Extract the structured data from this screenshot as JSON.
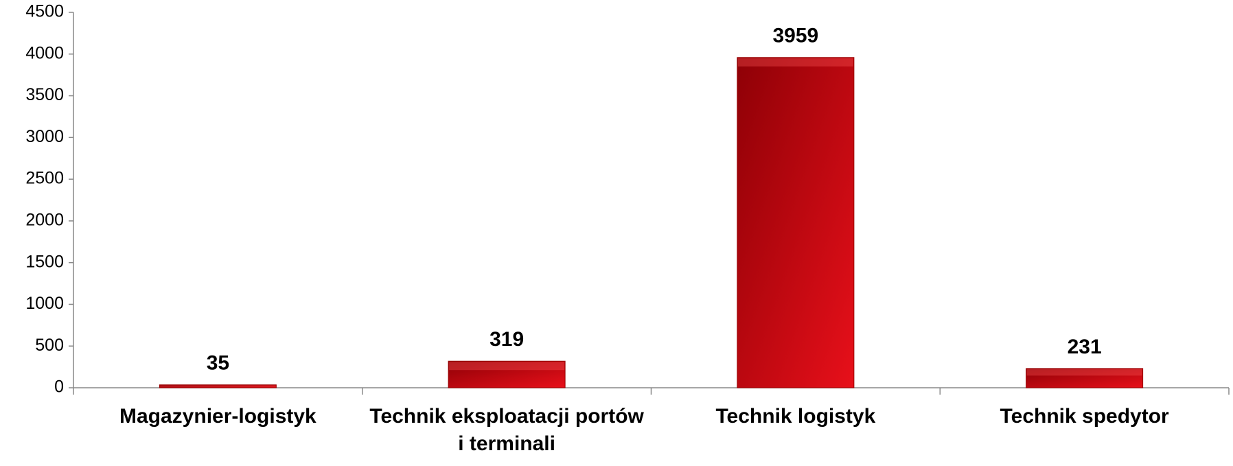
{
  "chart_data": {
    "type": "bar",
    "categories": [
      "Magazynier-logistyk",
      "Technik eksploatacji portów i terminali",
      "Technik logistyk",
      "Technik spedytor"
    ],
    "values": [
      35,
      319,
      3959,
      231
    ],
    "color": "#c8000a",
    "ylim": [
      0,
      4500
    ],
    "yticks": [
      0,
      500,
      1000,
      1500,
      2000,
      2500,
      3000,
      3500,
      4000,
      4500
    ]
  }
}
